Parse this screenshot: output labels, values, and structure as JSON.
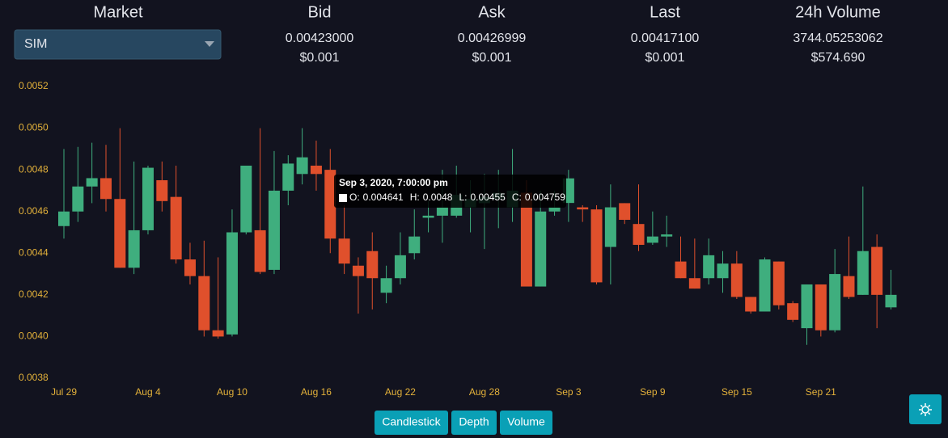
{
  "header": {
    "market_label": "Market",
    "market_value": "SIM",
    "columns": [
      {
        "title": "Bid",
        "price": "0.00423000",
        "usd": "$0.001"
      },
      {
        "title": "Ask",
        "price": "0.00426999",
        "usd": "$0.001"
      },
      {
        "title": "Last",
        "price": "0.00417100",
        "usd": "$0.001"
      },
      {
        "title": "24h Volume",
        "price": "3744.05253062",
        "usd": "$574.690"
      }
    ]
  },
  "chart_data": {
    "type": "candlestick",
    "categories": [
      "Jul 29",
      null,
      null,
      null,
      null,
      null,
      "Aug 4",
      null,
      null,
      null,
      null,
      null,
      "Aug 10",
      null,
      null,
      null,
      null,
      null,
      "Aug 16",
      null,
      null,
      null,
      null,
      null,
      "Aug 22",
      null,
      null,
      null,
      null,
      null,
      "Aug 28",
      null,
      null,
      null,
      null,
      null,
      "Sep 3",
      null,
      null,
      null,
      null,
      null,
      "Sep 9",
      null,
      null,
      null,
      null,
      null,
      "Sep 15",
      null,
      null,
      null,
      null,
      null,
      "Sep 21",
      null,
      null,
      null,
      null,
      null
    ],
    "open": [
      0.00453,
      0.0046,
      0.00472,
      0.00476,
      0.00466,
      0.00433,
      0.00451,
      0.00475,
      0.00467,
      0.00437,
      0.00429,
      0.00403,
      0.00401,
      0.0045,
      0.00451,
      0.00432,
      0.0047,
      0.00478,
      0.00482,
      0.0048,
      0.00447,
      0.00434,
      0.00441,
      0.00421,
      0.00428,
      0.0044,
      0.00457,
      0.00458,
      0.00458,
      0.00462,
      0.00464,
      0.00466,
      0.00462,
      0.00469,
      0.00424,
      0.0046,
      0.004641,
      0.00462,
      0.00461,
      0.00443,
      0.00464,
      0.00454,
      0.00445,
      0.00448,
      0.00436,
      0.00428,
      0.00428,
      0.00428,
      0.00435,
      0.00419,
      0.00412,
      0.00436,
      0.00416,
      0.00404,
      0.00425,
      0.00403,
      0.00429,
      0.0042,
      0.00443,
      0.00414
    ],
    "high": [
      0.0049,
      0.00491,
      0.00493,
      0.00492,
      0.005,
      0.00484,
      0.00482,
      0.00484,
      0.00482,
      0.00445,
      0.00446,
      0.00438,
      0.00461,
      0.00482,
      0.005,
      0.00489,
      0.00487,
      0.005,
      0.00494,
      0.0049,
      0.00463,
      0.00438,
      0.0045,
      0.00434,
      0.0045,
      0.00461,
      0.00465,
      0.0048,
      0.00482,
      0.00475,
      0.00478,
      0.0048,
      0.0049,
      0.00475,
      0.0047,
      0.0047,
      0.0048,
      0.00463,
      0.00463,
      0.00473,
      0.00464,
      0.00473,
      0.0046,
      0.00458,
      0.00448,
      0.00447,
      0.00447,
      0.00441,
      0.00441,
      0.00419,
      0.00438,
      0.00436,
      0.00417,
      0.00425,
      0.00425,
      0.00442,
      0.00448,
      0.00472,
      0.00449,
      0.00432
    ],
    "low": [
      0.00447,
      0.00455,
      0.00464,
      0.0046,
      0.00433,
      0.0043,
      0.00449,
      0.0046,
      0.00435,
      0.00425,
      0.004,
      0.00399,
      0.004,
      0.00449,
      0.0043,
      0.0043,
      0.00463,
      0.00473,
      0.0047,
      0.0044,
      0.0043,
      0.00411,
      0.00413,
      0.00416,
      0.00425,
      0.00437,
      0.0045,
      0.00445,
      0.00457,
      0.0045,
      0.00442,
      0.00452,
      0.00455,
      0.00424,
      0.00424,
      0.00458,
      0.00455,
      0.00455,
      0.00425,
      0.00425,
      0.00454,
      0.00441,
      0.00444,
      0.00443,
      0.00428,
      0.00423,
      0.00425,
      0.00421,
      0.00418,
      0.00411,
      0.00412,
      0.00413,
      0.00407,
      0.00396,
      0.004,
      0.00402,
      0.00418,
      0.0042,
      0.00404,
      0.00413
    ],
    "close": [
      0.0046,
      0.00472,
      0.00476,
      0.00466,
      0.00433,
      0.00451,
      0.00481,
      0.00465,
      0.00437,
      0.00429,
      0.00403,
      0.004,
      0.0045,
      0.00482,
      0.00431,
      0.0047,
      0.00483,
      0.00486,
      0.00478,
      0.00447,
      0.00435,
      0.00429,
      0.00428,
      0.00428,
      0.00439,
      0.00448,
      0.00458,
      0.00462,
      0.00468,
      0.00466,
      0.00467,
      0.00469,
      0.0047,
      0.00424,
      0.0046,
      0.00462,
      0.004759,
      0.00461,
      0.00426,
      0.00462,
      0.00456,
      0.00444,
      0.00448,
      0.00449,
      0.00428,
      0.00423,
      0.00439,
      0.00435,
      0.00419,
      0.00412,
      0.00437,
      0.00415,
      0.00408,
      0.00425,
      0.00403,
      0.0043,
      0.00419,
      0.00441,
      0.0042,
      0.0042
    ],
    "up_color": "#3fae7e",
    "down_color": "#e0502c",
    "ylim": [
      0.0038,
      0.0052
    ],
    "yticks": [
      0.0038,
      {
        "value": 0.004,
        "label": "0.0040"
      },
      0.0042,
      0.0044,
      0.0046,
      0.0048,
      {
        "value": 0.005,
        "label": "0.0050"
      },
      0.0052
    ]
  },
  "tooltip": {
    "title": "Sep 3, 2020, 7:00:00 pm",
    "fields": [
      {
        "label": "O:",
        "value": "0.004641"
      },
      {
        "label": "H:",
        "value": "0.0048"
      },
      {
        "label": "L:",
        "value": "0.00455"
      },
      {
        "label": "C:",
        "value": "0.004759"
      }
    ]
  },
  "buttons": [
    "Candlestick",
    "Depth",
    "Volume"
  ]
}
